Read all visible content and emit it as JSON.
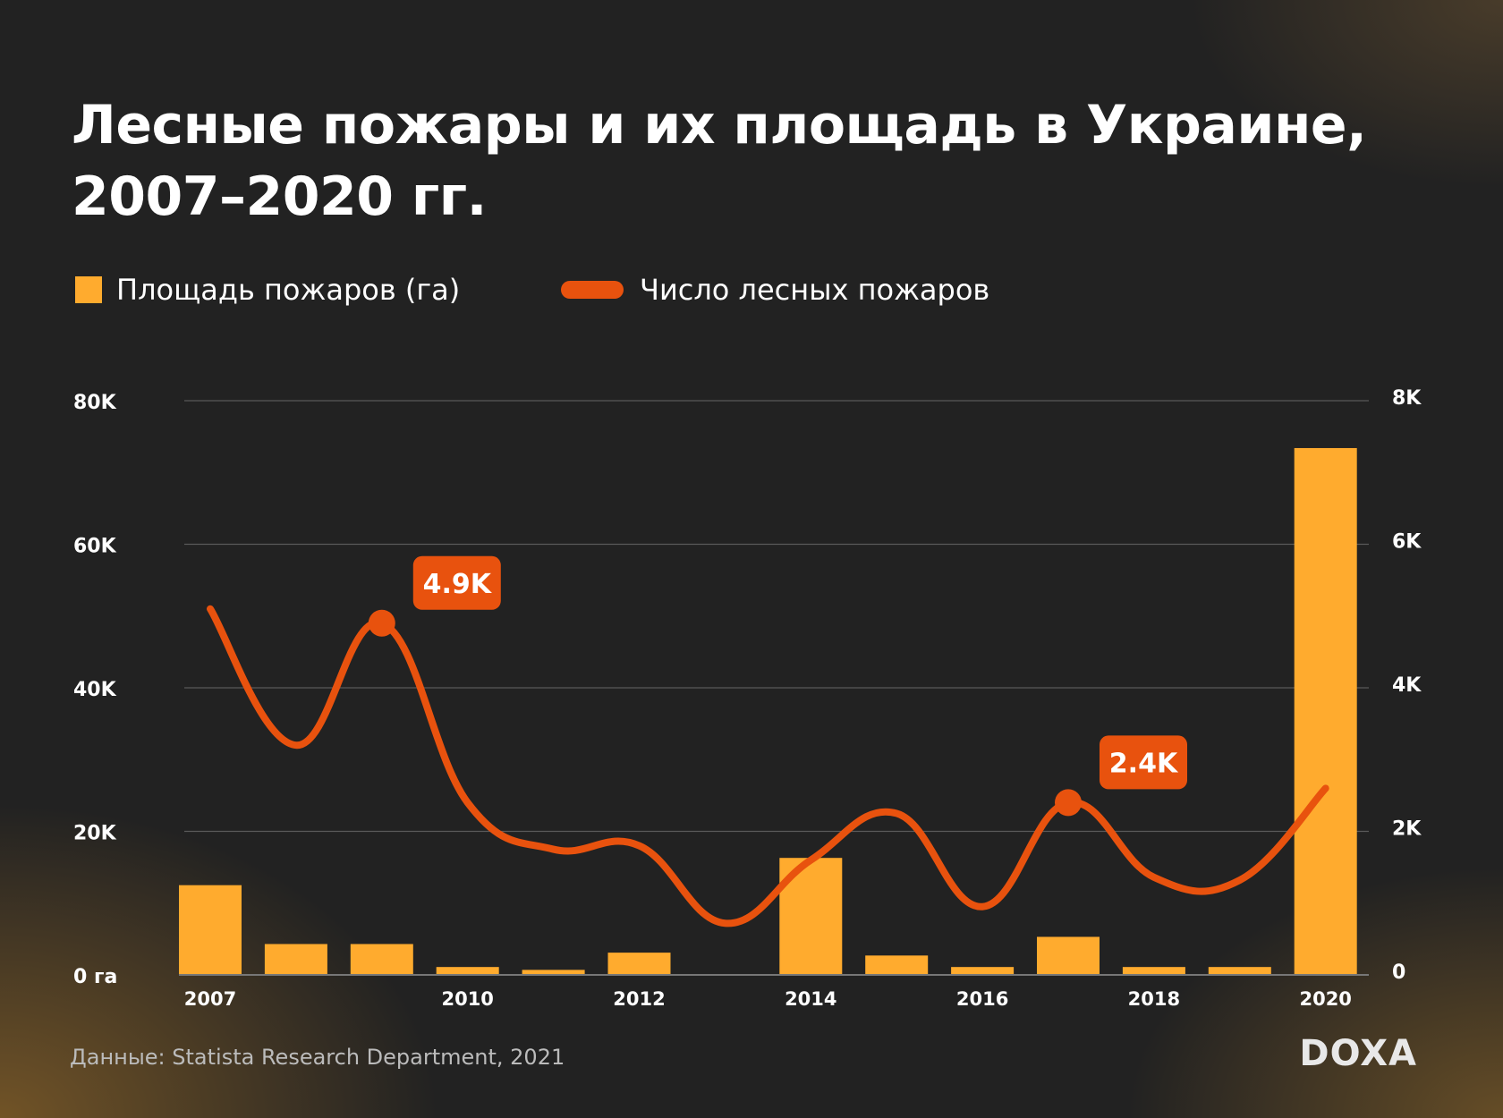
{
  "title_line1": "Лесные пожары и их площадь в Украине,",
  "title_line2": "2007–2020 гг.",
  "source": "Данные: Statista Research Department, 2021",
  "logo": "DOXA",
  "colors": {
    "bars": "#ffab2e",
    "line": "#e8520e",
    "background": "#222222"
  },
  "chart_data": {
    "type": "bar+line",
    "categories": [
      2007,
      2008,
      2009,
      2010,
      2011,
      2012,
      2013,
      2014,
      2015,
      2016,
      2017,
      2018,
      2019,
      2020
    ],
    "x_tick_labels": [
      "2007",
      "2010",
      "2012",
      "2014",
      "2016",
      "2018",
      "2020"
    ],
    "series": [
      {
        "name": "Площадь пожаров (га)",
        "type": "bar",
        "axis": "left",
        "values": [
          12500,
          4300,
          4300,
          1100,
          700,
          3100,
          0,
          16300,
          2700,
          1100,
          5300,
          1100,
          1100,
          73400
        ]
      },
      {
        "name": "Число лесных пожаров",
        "type": "line",
        "axis": "right",
        "values": [
          5100,
          3200,
          4900,
          2400,
          1750,
          1800,
          720,
          1600,
          2250,
          950,
          2400,
          1360,
          1320,
          2600
        ]
      }
    ],
    "left_axis": {
      "ylim": [
        0,
        80000
      ],
      "ticks": [
        "0 га",
        "20K",
        "40K",
        "60K",
        "80K"
      ]
    },
    "right_axis": {
      "ylim": [
        0,
        8000
      ],
      "ticks": [
        "0",
        "2K",
        "4K",
        "6K",
        "8K"
      ]
    },
    "annotations": [
      {
        "year": 2009,
        "text": "4.9K"
      },
      {
        "year": 2017,
        "text": "2.4K"
      }
    ],
    "grid": true,
    "legend": "top-left"
  }
}
